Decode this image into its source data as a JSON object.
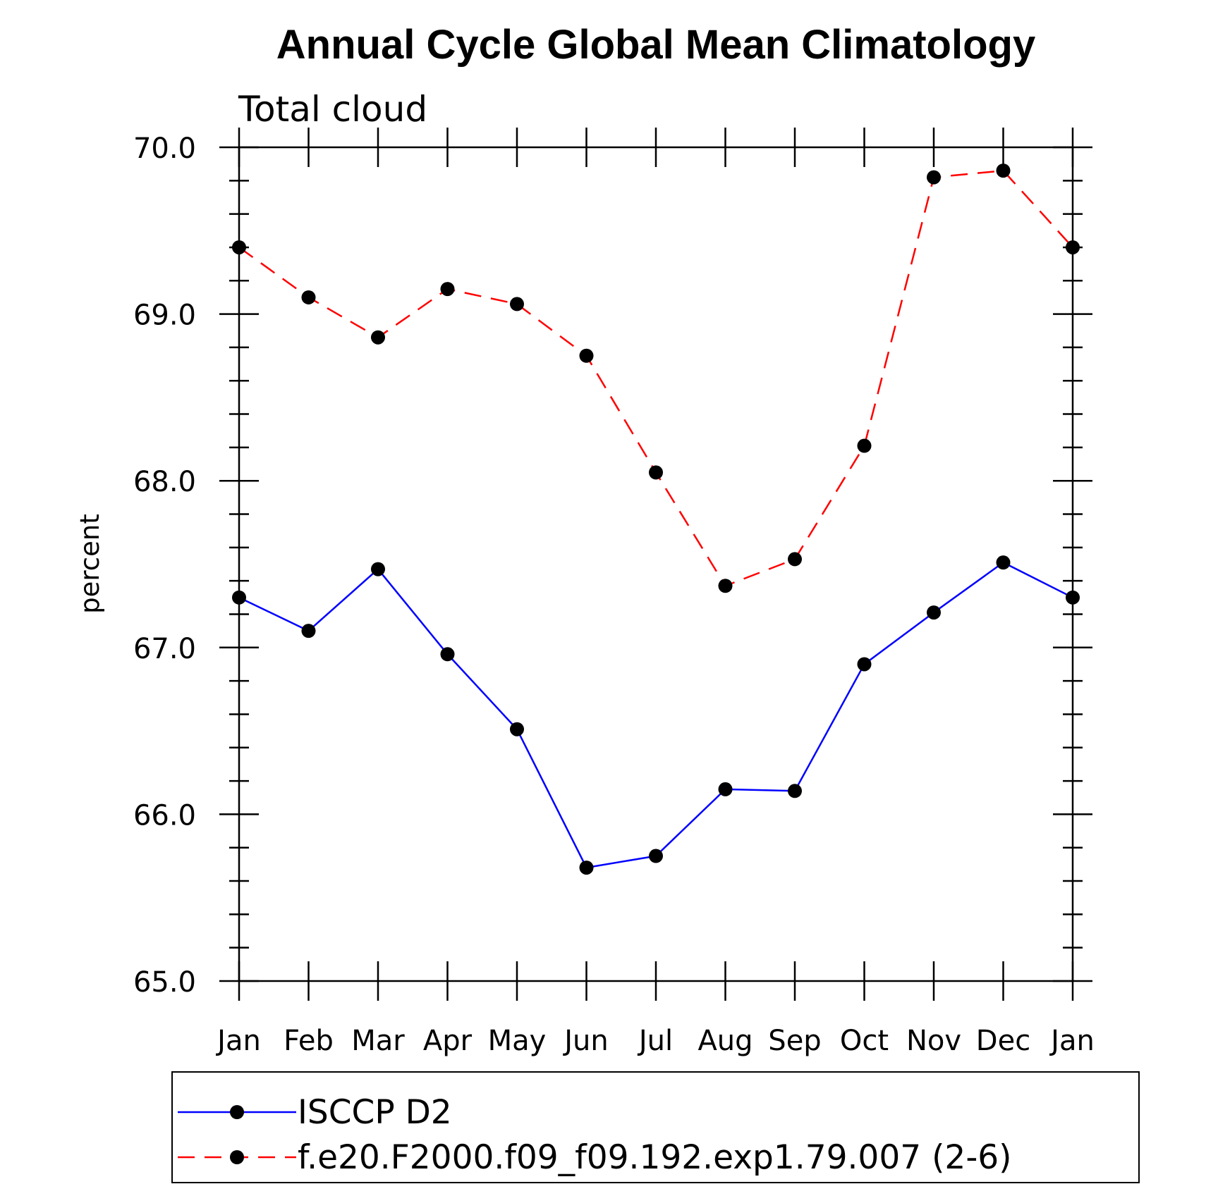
{
  "chart_data": {
    "type": "line",
    "title": "Annual Cycle Global Mean Climatology",
    "subtitle": "Total cloud",
    "xlabel": "",
    "ylabel": "percent",
    "categories": [
      "Jan",
      "Feb",
      "Mar",
      "Apr",
      "May",
      "Jun",
      "Jul",
      "Aug",
      "Sep",
      "Oct",
      "Nov",
      "Dec",
      "Jan"
    ],
    "ylim": [
      65.0,
      70.0
    ],
    "yticks": [
      "65.0",
      "66.0",
      "67.0",
      "68.0",
      "69.0",
      "70.0"
    ],
    "series": [
      {
        "name": "ISCCP D2",
        "color": "#0000ff",
        "style": "solid",
        "marker": "filled-circle",
        "values": [
          67.3,
          67.1,
          67.47,
          66.96,
          66.51,
          65.68,
          65.75,
          66.15,
          66.14,
          66.9,
          67.21,
          67.51,
          67.3
        ]
      },
      {
        "name": "f.e20.F2000.f09_f09.192.exp1.79.007 (2-6)",
        "color": "#ff0000",
        "style": "dashed",
        "marker": "filled-circle",
        "values": [
          69.4,
          69.1,
          68.86,
          69.15,
          69.06,
          68.75,
          68.05,
          67.37,
          67.53,
          68.21,
          69.82,
          69.86,
          69.4
        ]
      }
    ],
    "grid": false,
    "legend_position": "bottom"
  }
}
